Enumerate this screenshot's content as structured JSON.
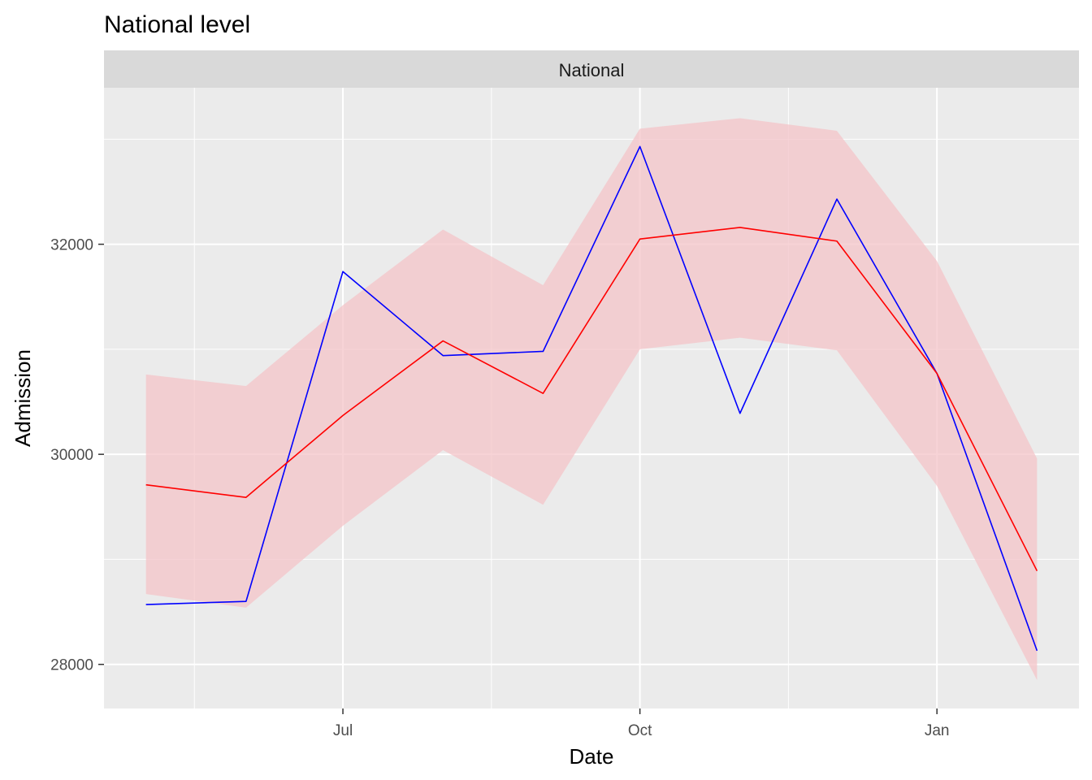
{
  "chart_data": {
    "type": "line",
    "title": "National level",
    "facet_label": "National",
    "xlabel": "Date",
    "ylabel": "Admission",
    "x": [
      "2023-05-01",
      "2023-06-01",
      "2023-07-01",
      "2023-08-01",
      "2023-09-01",
      "2023-10-01",
      "2023-11-01",
      "2023-12-01",
      "2024-01-01",
      "2024-02-01"
    ],
    "x_ticks": [
      {
        "date": "2023-07-01",
        "label": "Jul"
      },
      {
        "date": "2023-10-01",
        "label": "Oct"
      },
      {
        "date": "2024-01-01",
        "label": "Jan"
      }
    ],
    "x_minor_ticks": [
      "2023-05-16",
      "2023-08-16",
      "2023-11-16"
    ],
    "xlim": [
      "2023-04-18",
      "2024-02-14"
    ],
    "ylim": [
      27580,
      33490
    ],
    "y_ticks": [
      28000,
      30000,
      32000
    ],
    "y_minor_ticks": [
      29000,
      31000,
      33000
    ],
    "series": [
      {
        "color": "#0000ff",
        "values": [
          28570,
          28600,
          31740,
          30940,
          30980,
          32930,
          30390,
          32430,
          30770,
          28130
        ]
      },
      {
        "color": "#ff0000",
        "values": [
          29710,
          29590,
          30370,
          31080,
          30580,
          32050,
          32160,
          32030,
          30770,
          28890
        ]
      }
    ],
    "band": {
      "color": "#f4c4c8",
      "lower": [
        28670,
        28540,
        29320,
        30040,
        29520,
        31000,
        31110,
        30990,
        29700,
        27850
      ],
      "upper": [
        30760,
        30650,
        31420,
        32140,
        31610,
        33100,
        33200,
        33080,
        31840,
        29960
      ]
    },
    "panel_background": "#ebebeb",
    "strip_background": "#d9d9d9",
    "grid": true,
    "legend": "none"
  }
}
